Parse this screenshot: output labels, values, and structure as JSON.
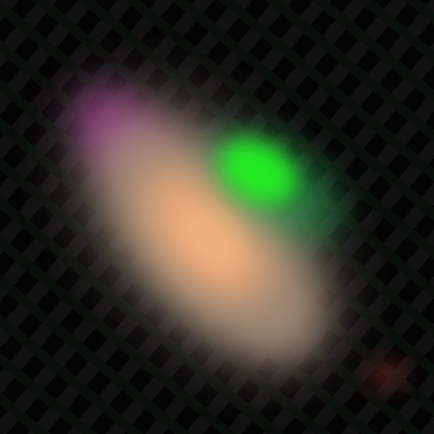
{
  "image": {
    "subject": "blurred-galaxy",
    "background_color": "#050405",
    "palette": {
      "core": "#e8a878",
      "halo": "#9c8a78",
      "green_blob": "#22f020",
      "magenta_tint": "#a04090",
      "noise_dark": "#1a1a1a"
    }
  }
}
